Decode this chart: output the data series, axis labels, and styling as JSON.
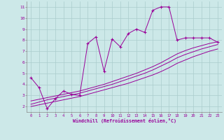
{
  "xlabel": "Windchill (Refroidissement éolien,°C)",
  "bg_color": "#cce8e8",
  "line_color": "#990099",
  "grid_color": "#aacccc",
  "x_data": [
    0,
    1,
    2,
    3,
    4,
    5,
    6,
    7,
    8,
    9,
    10,
    11,
    12,
    13,
    14,
    15,
    16,
    17,
    18,
    19,
    20,
    21,
    22,
    23
  ],
  "y_main": [
    4.6,
    3.7,
    1.8,
    2.7,
    3.4,
    3.1,
    3.0,
    7.7,
    8.3,
    5.2,
    8.1,
    7.4,
    8.6,
    9.0,
    8.7,
    10.7,
    11.0,
    11.0,
    8.0,
    8.2,
    8.2,
    8.2,
    8.2,
    7.8
  ],
  "y_line1": [
    2.0,
    2.15,
    2.3,
    2.45,
    2.6,
    2.75,
    2.9,
    3.1,
    3.3,
    3.5,
    3.7,
    3.9,
    4.1,
    4.35,
    4.6,
    4.85,
    5.15,
    5.5,
    5.9,
    6.2,
    6.5,
    6.75,
    7.0,
    7.2
  ],
  "y_line2": [
    2.2,
    2.4,
    2.6,
    2.75,
    2.9,
    3.05,
    3.2,
    3.4,
    3.6,
    3.8,
    4.0,
    4.25,
    4.5,
    4.75,
    5.0,
    5.3,
    5.65,
    6.0,
    6.4,
    6.7,
    6.95,
    7.2,
    7.4,
    7.6
  ],
  "y_line3": [
    2.5,
    2.65,
    2.8,
    2.95,
    3.1,
    3.25,
    3.4,
    3.6,
    3.8,
    4.0,
    4.25,
    4.5,
    4.75,
    5.0,
    5.3,
    5.6,
    5.95,
    6.35,
    6.75,
    7.05,
    7.3,
    7.5,
    7.7,
    7.85
  ],
  "ylim": [
    1.5,
    11.5
  ],
  "xlim": [
    -0.5,
    23.5
  ],
  "yticks": [
    2,
    3,
    4,
    5,
    6,
    7,
    8,
    9,
    10,
    11
  ],
  "xticks": [
    0,
    1,
    2,
    3,
    4,
    5,
    6,
    7,
    8,
    9,
    10,
    11,
    12,
    13,
    14,
    15,
    16,
    17,
    18,
    19,
    20,
    21,
    22,
    23
  ]
}
